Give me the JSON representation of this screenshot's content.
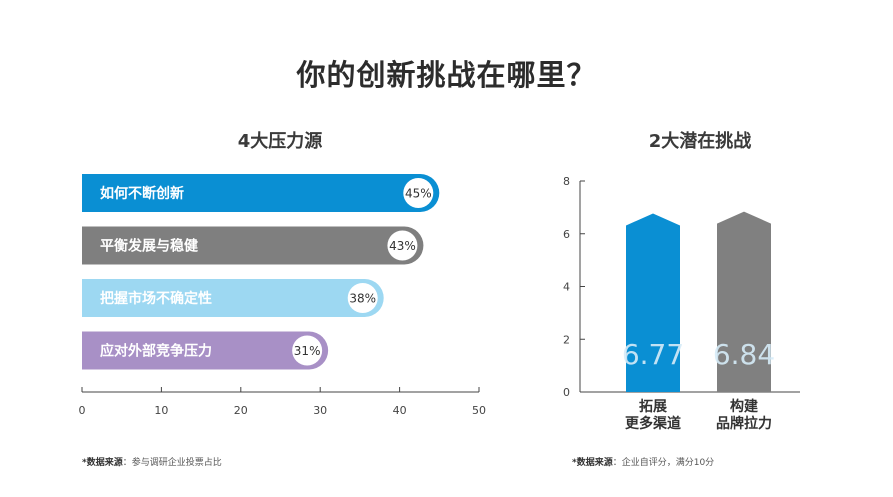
{
  "page_title": "你的创新挑战在哪里？",
  "chart_data": [
    {
      "type": "bar",
      "orientation": "horizontal",
      "title": "4大压力源",
      "categories": [
        "如何不断创新",
        "平衡发展与稳健",
        "把握市场不确定性",
        "应对外部竞争压力"
      ],
      "values": [
        45,
        43,
        38,
        31
      ],
      "value_labels": [
        "45%",
        "43%",
        "38%",
        "31%"
      ],
      "colors": [
        "#0a8fd3",
        "#7f7f7f",
        "#9dd8f2",
        "#a890c6"
      ],
      "xlim": [
        0,
        50
      ],
      "xticks": [
        "0",
        "10",
        "20",
        "30",
        "40",
        "50"
      ],
      "grid": false
    },
    {
      "type": "bar",
      "title": "2大潜在挑战",
      "categories": [
        [
          "拓展",
          "更多渠道"
        ],
        [
          "构建",
          "品牌拉力"
        ]
      ],
      "values": [
        6.77,
        6.84
      ],
      "value_labels": [
        "6.77",
        "6.84"
      ],
      "colors": [
        "#0a8fd3",
        "#808080"
      ],
      "ylim": [
        0,
        8
      ],
      "yticks": [
        "0",
        "2",
        "4",
        "6",
        "8"
      ],
      "grid": false
    }
  ],
  "footnotes": {
    "left": {
      "label": "*数据来源",
      "text": "：参与调研企业投票占比"
    },
    "right": {
      "label": "*数据来源",
      "text": "：企业自评分，满分10分"
    }
  }
}
